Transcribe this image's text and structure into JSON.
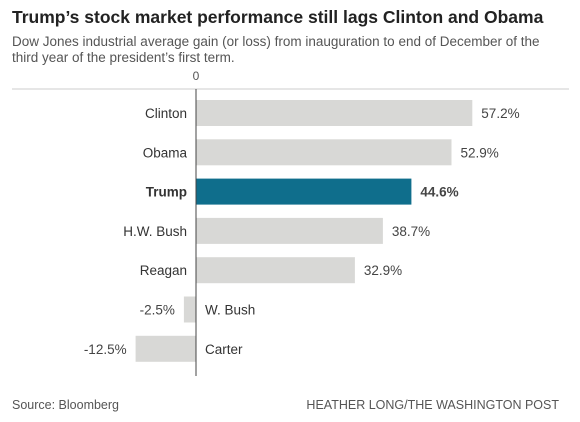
{
  "header": {
    "title": "Trump’s stock market performance still lags Clinton and Obama",
    "subtitle": "Dow Jones industrial average gain (or loss) from inauguration to end of December of the third year of the president’s first term."
  },
  "footer": {
    "source": "Source: Bloomberg",
    "credit": "HEATHER LONG/THE WASHINGTON POST"
  },
  "colors": {
    "bar_default": "#d8d8d6",
    "bar_highlight": "#0f6e8c",
    "axis": "#444444",
    "label_text": "#333333",
    "value_text": "#444444"
  },
  "chart_data": {
    "type": "bar",
    "orientation": "horizontal",
    "zero_label": "0",
    "categories": [
      "Clinton",
      "Obama",
      "Trump",
      "H.W. Bush",
      "Reagan",
      "W. Bush",
      "Carter"
    ],
    "values": [
      57.2,
      52.9,
      44.6,
      38.7,
      32.9,
      -2.5,
      -12.5
    ],
    "value_labels": [
      "57.2%",
      "52.9%",
      "44.6%",
      "38.7%",
      "32.9%",
      "-2.5%",
      "-12.5%"
    ],
    "highlight": "Trump",
    "xlim": [
      -12.5,
      57.2
    ],
    "grid": false,
    "legend": "none"
  }
}
